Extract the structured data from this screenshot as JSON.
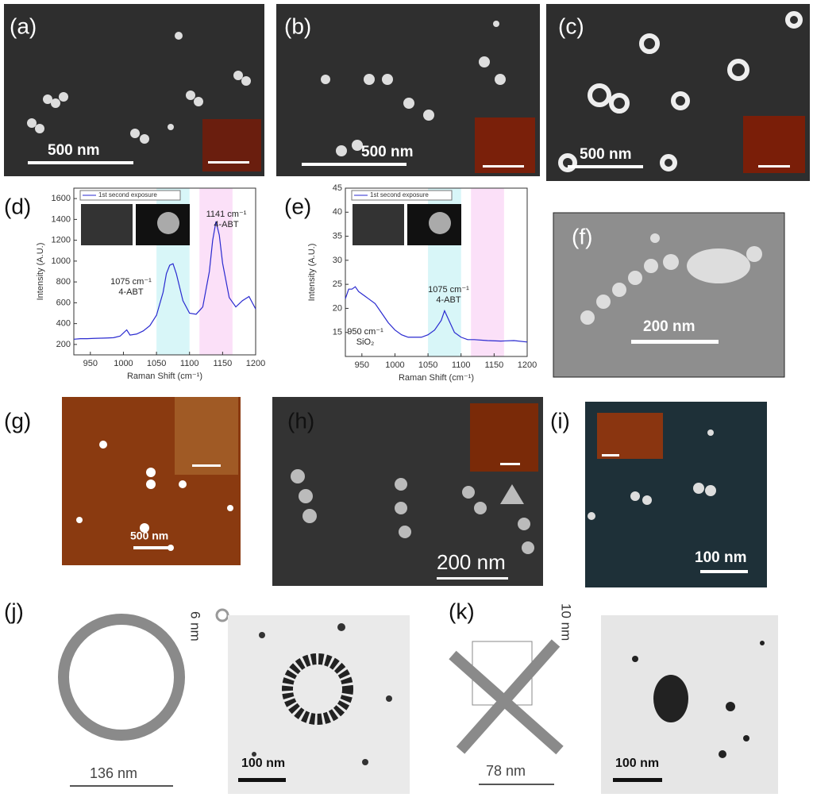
{
  "panels": {
    "a": {
      "label": "(a)",
      "scale_bar": "500 nm"
    },
    "b": {
      "label": "(b)",
      "scale_bar": "500 nm"
    },
    "c": {
      "label": "(c)",
      "scale_bar": "500 nm"
    },
    "d": {
      "label": "(d)"
    },
    "e": {
      "label": "(e)"
    },
    "f": {
      "label": "(f)",
      "scale_bar": "200 nm"
    },
    "g": {
      "label": "(g)",
      "scale_bar": "500 nm"
    },
    "h": {
      "label": "(h)",
      "scale_bar": "200 nm"
    },
    "i": {
      "label": "(i)",
      "scale_bar": "100 nm"
    },
    "j": {
      "label": "(j)",
      "height": "6 nm",
      "size": "136 nm",
      "scale_bar": "100 nm"
    },
    "k": {
      "label": "(k)",
      "height": "10 nm",
      "size": "78 nm",
      "scale_bar": "100 nm"
    }
  },
  "chart_data": [
    {
      "type": "line",
      "x_label": "Raman Shift (cm⁻¹)",
      "y_label": "Intensity (A.U.)",
      "legend": "1st second exposure",
      "color": "#2a2ad0",
      "x": [
        925,
        935,
        945,
        955,
        965,
        975,
        985,
        995,
        1000,
        1005,
        1010,
        1020,
        1030,
        1040,
        1050,
        1060,
        1065,
        1070,
        1075,
        1080,
        1090,
        1100,
        1110,
        1120,
        1130,
        1135,
        1140,
        1145,
        1150,
        1160,
        1170,
        1180,
        1190,
        1200
      ],
      "values": [
        250,
        255,
        255,
        258,
        260,
        262,
        265,
        280,
        310,
        340,
        290,
        300,
        330,
        380,
        480,
        700,
        880,
        960,
        975,
        880,
        620,
        500,
        490,
        560,
        900,
        1200,
        1380,
        1250,
        980,
        650,
        560,
        620,
        660,
        540
      ],
      "xlim": [
        925,
        1200
      ],
      "xticks": [
        950,
        1000,
        1050,
        1100,
        1150,
        1200
      ],
      "ylim": [
        100,
        1700
      ],
      "yticks": [
        200,
        400,
        600,
        800,
        1000,
        1200,
        1400,
        1600
      ],
      "bands": [
        {
          "range": [
            1050,
            1100
          ],
          "color": "#d8f6f8"
        },
        {
          "range": [
            1115,
            1165
          ],
          "color": "#fbe0f8"
        }
      ],
      "annotations": [
        [
          "1075 cm⁻¹",
          "4-ABT"
        ],
        [
          "1141 cm⁻¹",
          "4-ABT"
        ]
      ]
    },
    {
      "type": "line",
      "x_label": "Raman Shift (cm⁻¹)",
      "y_label": "Intensity (A.U.)",
      "legend": "1st second exposure",
      "color": "#2a2ad0",
      "x": [
        925,
        930,
        935,
        940,
        945,
        950,
        955,
        960,
        970,
        980,
        990,
        1000,
        1010,
        1020,
        1030,
        1040,
        1050,
        1060,
        1070,
        1075,
        1080,
        1090,
        1100,
        1110,
        1120,
        1140,
        1160,
        1180,
        1200
      ],
      "values": [
        22,
        24,
        24,
        24.5,
        23.5,
        23,
        22.5,
        22,
        21,
        19,
        17,
        15.5,
        14.5,
        14,
        14,
        14,
        14.5,
        15.5,
        17.5,
        19.5,
        18,
        15,
        14,
        13.5,
        13.5,
        13.3,
        13.2,
        13.3,
        13
      ],
      "xlim": [
        925,
        1200
      ],
      "xticks": [
        950,
        1000,
        1050,
        1100,
        1150,
        1200
      ],
      "ylim": [
        10,
        45
      ],
      "yticks": [
        15,
        20,
        25,
        30,
        35,
        40,
        45
      ],
      "bands": [
        {
          "range": [
            1050,
            1100
          ],
          "color": "#d8f6f8"
        },
        {
          "range": [
            1115,
            1165
          ],
          "color": "#fbe0f8"
        }
      ],
      "annotations": [
        [
          "1075 cm⁻¹",
          "4-ABT"
        ],
        [
          "950 cm⁻¹",
          "SiO₂"
        ]
      ]
    }
  ]
}
